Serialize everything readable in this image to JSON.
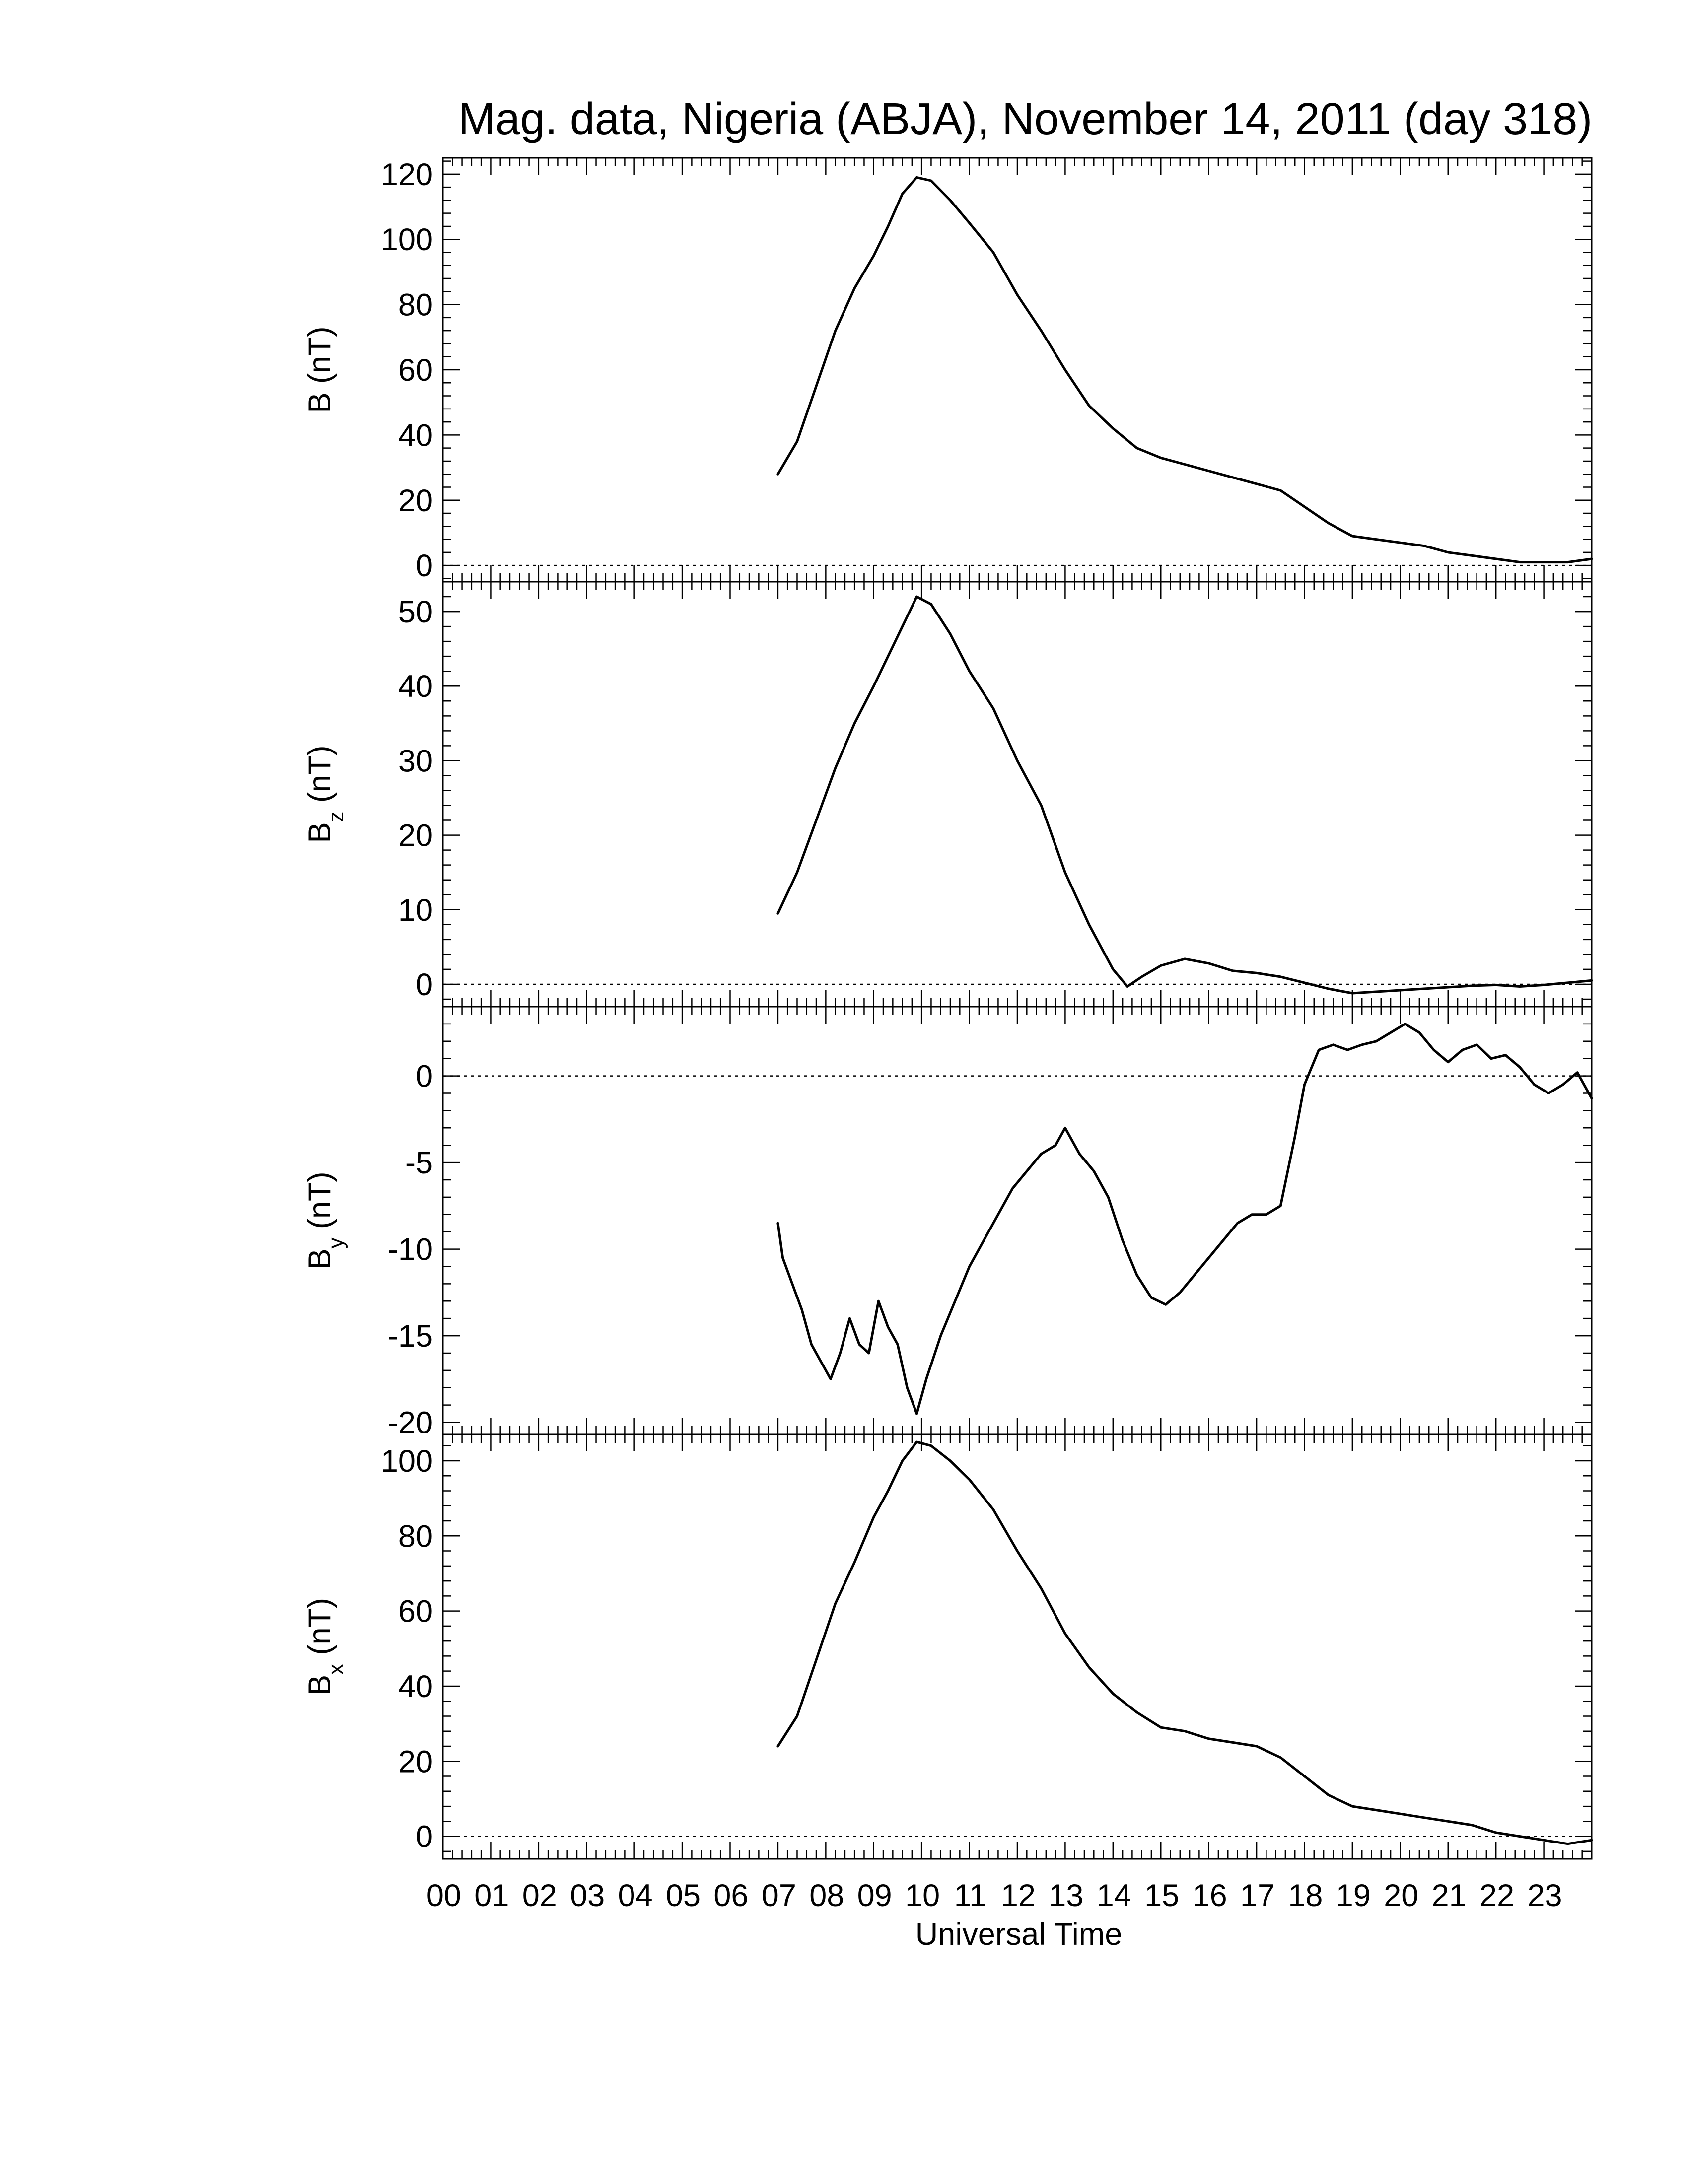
{
  "figure": {
    "title": "Mag. data, Nigeria (ABJA), November 14, 2011 (day 318)",
    "xlabel": "Universal Time"
  },
  "chart_data": {
    "type": "line",
    "title": "Mag. data, Nigeria (ABJA), November 14, 2011 (day 318)",
    "xlabel": "Universal Time",
    "xlim": [
      0,
      24
    ],
    "x_ticks": [
      0,
      1,
      2,
      3,
      4,
      5,
      6,
      7,
      8,
      9,
      10,
      11,
      12,
      13,
      14,
      15,
      16,
      17,
      18,
      19,
      20,
      21,
      22,
      23
    ],
    "x_tick_labels": [
      "00",
      "01",
      "02",
      "03",
      "04",
      "05",
      "06",
      "07",
      "08",
      "09",
      "10",
      "11",
      "12",
      "13",
      "14",
      "15",
      "16",
      "17",
      "18",
      "19",
      "20",
      "21",
      "22",
      "23"
    ],
    "grid": false,
    "zero_line": "dotted",
    "panels": [
      {
        "name": "B",
        "ylabel": "B (nT)",
        "ylabel_base": "B",
        "ylabel_sub": "",
        "ylabel_unit": "(nT)",
        "ylim": [
          -5,
          125
        ],
        "yticks": [
          0,
          20,
          40,
          60,
          80,
          100,
          120
        ],
        "x": [
          7.0,
          7.4,
          7.8,
          8.2,
          8.6,
          9.0,
          9.3,
          9.6,
          9.9,
          10.2,
          10.6,
          11.0,
          11.5,
          12.0,
          12.5,
          13.0,
          13.5,
          14.0,
          14.5,
          15.0,
          15.5,
          16.0,
          16.5,
          17.0,
          17.5,
          18.0,
          18.5,
          19.0,
          19.5,
          20.0,
          20.5,
          21.0,
          21.5,
          22.0,
          22.5,
          23.0,
          23.5,
          24.0
        ],
        "y": [
          28,
          38,
          55,
          72,
          85,
          95,
          104,
          114,
          119,
          118,
          112,
          105,
          96,
          83,
          72,
          60,
          49,
          42,
          36,
          33,
          31,
          29,
          27,
          25,
          23,
          18,
          13,
          9,
          8,
          7,
          6,
          4,
          3,
          2,
          1,
          1,
          1,
          2
        ]
      },
      {
        "name": "Bz",
        "ylabel": "Bz (nT)",
        "ylabel_base": "B",
        "ylabel_sub": "z",
        "ylabel_unit": "(nT)",
        "ylim": [
          -3,
          54
        ],
        "yticks": [
          0,
          10,
          20,
          30,
          40,
          50
        ],
        "x": [
          7.0,
          7.4,
          7.8,
          8.2,
          8.6,
          9.0,
          9.3,
          9.6,
          9.9,
          10.2,
          10.6,
          11.0,
          11.5,
          12.0,
          12.5,
          13.0,
          13.5,
          14.0,
          14.3,
          14.6,
          15.0,
          15.5,
          16.0,
          16.5,
          17.0,
          17.5,
          18.0,
          18.5,
          19.0,
          19.5,
          20.0,
          20.5,
          21.0,
          21.5,
          22.0,
          22.5,
          23.0,
          23.5,
          24.0
        ],
        "y": [
          9.5,
          15,
          22,
          29,
          35,
          40,
          44,
          48,
          52,
          51,
          47,
          42,
          37,
          30,
          24,
          15,
          8,
          2,
          -0.3,
          1,
          2.5,
          3.4,
          2.8,
          1.8,
          1.5,
          1.0,
          0.2,
          -0.6,
          -1.2,
          -1.0,
          -0.8,
          -0.6,
          -0.4,
          -0.2,
          -0.1,
          -0.3,
          -0.1,
          0.2,
          0.5
        ]
      },
      {
        "name": "By",
        "ylabel": "By (nT)",
        "ylabel_base": "B",
        "ylabel_sub": "y",
        "ylabel_unit": "(nT)",
        "ylim": [
          -20.7,
          4
        ],
        "yticks": [
          -20,
          -15,
          -10,
          -5,
          0
        ],
        "x": [
          7.0,
          7.1,
          7.3,
          7.5,
          7.7,
          7.9,
          8.1,
          8.3,
          8.5,
          8.7,
          8.9,
          9.1,
          9.3,
          9.5,
          9.7,
          9.9,
          10.1,
          10.4,
          10.7,
          11.0,
          11.3,
          11.6,
          11.9,
          12.2,
          12.5,
          12.8,
          13.0,
          13.3,
          13.6,
          13.9,
          14.2,
          14.5,
          14.8,
          15.1,
          15.4,
          15.7,
          16.0,
          16.3,
          16.6,
          16.9,
          17.2,
          17.5,
          17.8,
          18.0,
          18.3,
          18.6,
          18.9,
          19.2,
          19.5,
          19.8,
          20.1,
          20.4,
          20.7,
          21.0,
          21.3,
          21.6,
          21.9,
          22.2,
          22.5,
          22.8,
          23.1,
          23.4,
          23.7,
          24.0
        ],
        "y": [
          -8.5,
          -10.5,
          -12.0,
          -13.5,
          -15.5,
          -16.5,
          -17.5,
          -16.0,
          -14.0,
          -15.5,
          -16.0,
          -13.0,
          -14.5,
          -15.5,
          -18.0,
          -19.5,
          -17.5,
          -15.0,
          -13.0,
          -11.0,
          -9.5,
          -8.0,
          -6.5,
          -5.5,
          -4.5,
          -4.0,
          -3.0,
          -4.5,
          -5.5,
          -7.0,
          -9.5,
          -11.5,
          -12.8,
          -13.2,
          -12.5,
          -11.5,
          -10.5,
          -9.5,
          -8.5,
          -8.0,
          -8.0,
          -7.5,
          -3.5,
          -0.5,
          1.5,
          1.8,
          1.5,
          1.8,
          2.0,
          2.5,
          3.0,
          2.5,
          1.5,
          0.8,
          1.5,
          1.8,
          1.0,
          1.2,
          0.5,
          -0.5,
          -1.0,
          -0.5,
          0.2,
          -1.3
        ]
      },
      {
        "name": "Bx",
        "ylabel": "Bx (nT)",
        "ylabel_base": "B",
        "ylabel_sub": "x",
        "ylabel_unit": "(nT)",
        "ylim": [
          -6,
          107
        ],
        "yticks": [
          0,
          20,
          40,
          60,
          80,
          100
        ],
        "x": [
          7.0,
          7.4,
          7.8,
          8.2,
          8.6,
          9.0,
          9.3,
          9.6,
          9.9,
          10.2,
          10.6,
          11.0,
          11.5,
          12.0,
          12.5,
          13.0,
          13.5,
          14.0,
          14.5,
          15.0,
          15.5,
          16.0,
          16.5,
          17.0,
          17.5,
          18.0,
          18.5,
          19.0,
          19.5,
          20.0,
          20.5,
          21.0,
          21.5,
          22.0,
          22.5,
          23.0,
          23.5,
          24.0
        ],
        "y": [
          24,
          32,
          47,
          62,
          73,
          85,
          92,
          100,
          105,
          104,
          100,
          95,
          87,
          76,
          66,
          54,
          45,
          38,
          33,
          29,
          28,
          26,
          25,
          24,
          21,
          16,
          11,
          8,
          7,
          6,
          5,
          4,
          3,
          1,
          0,
          -1,
          -2,
          -1
        ]
      }
    ]
  }
}
